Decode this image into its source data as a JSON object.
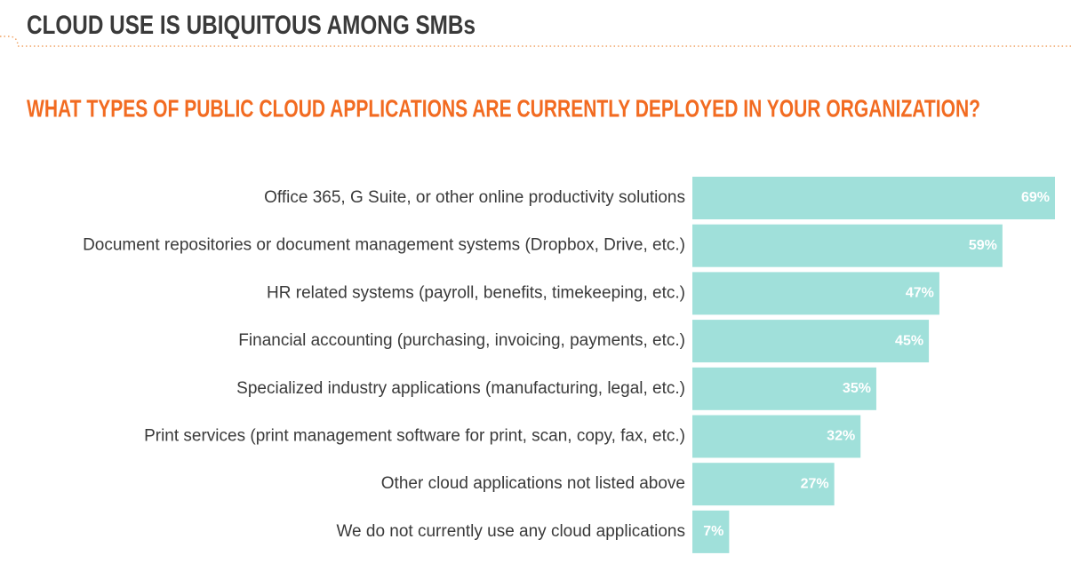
{
  "chart_data": {
    "type": "bar",
    "orientation": "horizontal",
    "title": "CLOUD USE IS UBIQUITOUS AMONG SMBs",
    "subtitle": "WHAT TYPES OF PUBLIC CLOUD APPLICATIONS ARE CURRENTLY DEPLOYED IN YOUR ORGANIZATION?",
    "categories": [
      "Office 365, G Suite, or other online productivity solutions",
      "Document repositories or document management systems (Dropbox, Drive, etc.)",
      "HR related systems (payroll, benefits, timekeeping, etc.)",
      "Financial accounting (purchasing, invoicing, payments, etc.)",
      "Specialized industry applications (manufacturing, legal, etc.)",
      "Print services (print management software for print, scan, copy, fax, etc.)",
      "Other cloud applications not listed above",
      "We do not currently use any cloud applications"
    ],
    "values": [
      69,
      59,
      47,
      45,
      35,
      32,
      27,
      7
    ],
    "value_labels": [
      "69%",
      "59%",
      "47%",
      "45%",
      "35%",
      "32%",
      "27%",
      "7%"
    ],
    "color": "#a0e0da"
  }
}
